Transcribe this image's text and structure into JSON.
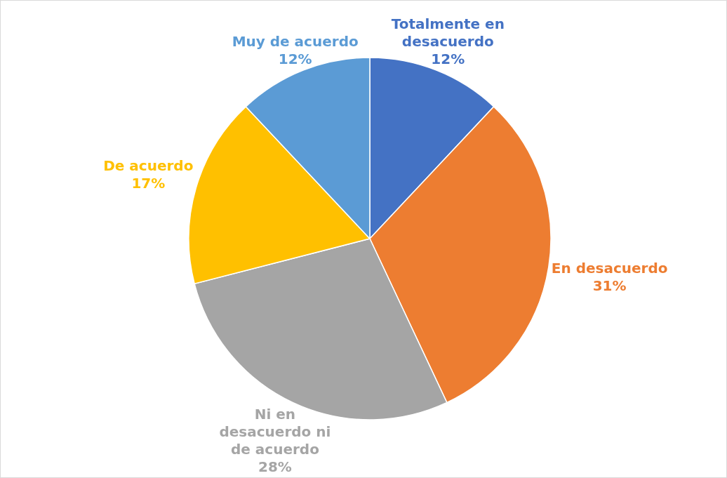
{
  "chart_data": {
    "type": "pie",
    "categories": [
      "Totalmente en desacuerdo",
      "En desacuerdo",
      "Ni en desacuerdo ni de acuerdo",
      "De acuerdo",
      "Muy de acuerdo"
    ],
    "values": [
      12,
      31,
      28,
      17,
      12
    ],
    "colors": [
      "#4472c4",
      "#ed7d31",
      "#a5a5a5",
      "#ffc000",
      "#5b9bd5"
    ],
    "value_labels": [
      "12%",
      "31%",
      "28%",
      "17%",
      "12%"
    ]
  }
}
